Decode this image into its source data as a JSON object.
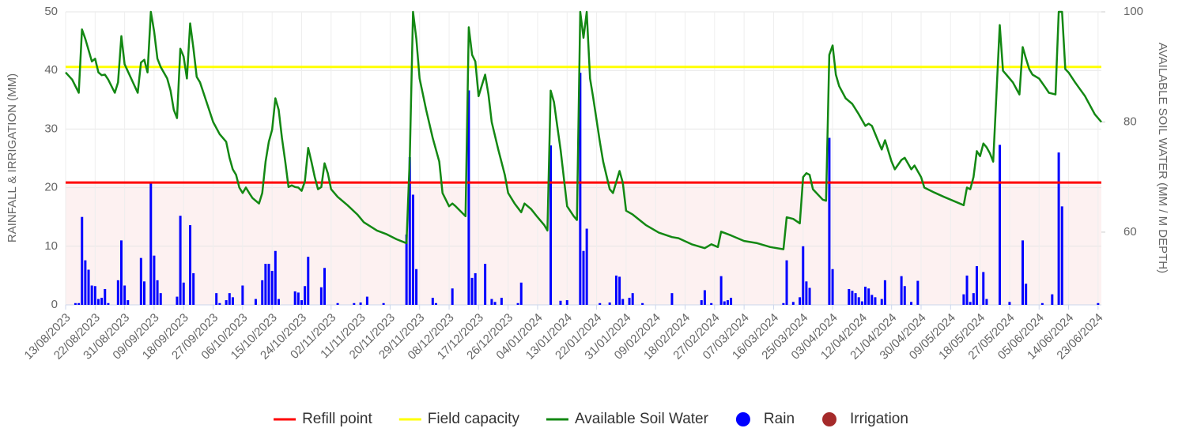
{
  "chart_data": {
    "type": "combo",
    "ylabel": "RAINFALL & IRRIGATION (MM)",
    "y2label": "AVAILABLE SOIL WATER (MM / M DEPTH)",
    "xlim": [
      "13/08/2023",
      "24/06/2024"
    ],
    "xticks": [
      "13/08/2023",
      "22/08/2023",
      "31/08/2023",
      "09/09/2023",
      "18/09/2023",
      "27/09/2023",
      "06/10/2023",
      "15/10/2023",
      "24/10/2023",
      "02/11/2023",
      "11/11/2023",
      "20/11/2023",
      "29/11/2023",
      "08/12/2023",
      "17/12/2023",
      "26/12/2023",
      "04/01/2024",
      "13/01/2024",
      "22/01/2024",
      "31/01/2024",
      "09/02/2024",
      "18/02/2024",
      "27/02/2024",
      "07/03/2024",
      "16/03/2024",
      "25/03/2024",
      "03/04/2024",
      "12/04/2024",
      "21/04/2024",
      "30/04/2024",
      "09/05/2024",
      "18/05/2024",
      "27/05/2024",
      "05/06/2024",
      "14/06/2024",
      "23/06/2024"
    ],
    "ylim": [
      0,
      50
    ],
    "yticks": [
      0,
      10,
      20,
      30,
      40,
      50
    ],
    "y2lim": [
      46.8,
      100
    ],
    "y2ticks": [
      60,
      80,
      100
    ],
    "grid": true,
    "legend": "bottom",
    "series": [
      {
        "name": "Refill point",
        "type": "hline",
        "axis": "y2",
        "color": "#ff0000",
        "value": 69
      },
      {
        "name": "Field capacity",
        "type": "hline",
        "axis": "y2",
        "color": "#ffff00",
        "value": 90
      },
      {
        "name": "Available Soil Water",
        "type": "line",
        "axis": "y2",
        "color": "#138813",
        "x": [
          "13/08/2023",
          "15/08/2023",
          "16/08/2023",
          "17/08/2023",
          "18/08/2023",
          "19/08/2023",
          "21/08/2023",
          "22/08/2023",
          "23/08/2023",
          "24/08/2023",
          "25/08/2023",
          "26/08/2023",
          "28/08/2023",
          "29/08/2023",
          "30/08/2023",
          "31/08/2023",
          "02/09/2023",
          "04/09/2023",
          "05/09/2023",
          "06/09/2023",
          "07/09/2023",
          "08/09/2023",
          "09/09/2023",
          "10/09/2023",
          "11/09/2023",
          "13/09/2023",
          "14/09/2023",
          "15/09/2023",
          "16/09/2023",
          "17/09/2023",
          "18/09/2023",
          "19/09/2023",
          "20/09/2023",
          "21/09/2023",
          "22/09/2023",
          "23/09/2023",
          "25/09/2023",
          "27/09/2023",
          "29/09/2023",
          "01/10/2023",
          "02/10/2023",
          "03/10/2023",
          "04/10/2023",
          "05/10/2023",
          "06/10/2023",
          "07/10/2023",
          "08/10/2023",
          "09/10/2023",
          "11/10/2023",
          "12/10/2023",
          "13/10/2023",
          "14/10/2023",
          "15/10/2023",
          "16/10/2023",
          "17/10/2023",
          "18/10/2023",
          "19/10/2023",
          "20/10/2023",
          "21/10/2023",
          "22/10/2023",
          "23/10/2023",
          "24/10/2023",
          "25/10/2023",
          "26/10/2023",
          "27/10/2023",
          "28/10/2023",
          "29/10/2023",
          "30/10/2023",
          "31/10/2023",
          "01/11/2023",
          "02/11/2023",
          "04/11/2023",
          "07/11/2023",
          "10/11/2023",
          "12/11/2023",
          "16/11/2023",
          "19/11/2023",
          "22/11/2023",
          "25/11/2023",
          "26/11/2023",
          "27/11/2023",
          "28/11/2023",
          "29/11/2023",
          "01/12/2023",
          "03/12/2023",
          "05/12/2023",
          "06/12/2023",
          "08/12/2023",
          "09/12/2023",
          "10/12/2023",
          "13/12/2023",
          "14/12/2023",
          "15/12/2023",
          "16/12/2023",
          "17/12/2023",
          "19/12/2023",
          "20/12/2023",
          "21/12/2023",
          "23/12/2023",
          "25/12/2023",
          "26/12/2023",
          "28/12/2023",
          "30/12/2023",
          "31/12/2023",
          "02/01/2024",
          "04/01/2024",
          "06/01/2024",
          "07/01/2024",
          "08/01/2024",
          "09/01/2024",
          "10/01/2024",
          "11/01/2024",
          "13/01/2024",
          "15/01/2024",
          "16/01/2024",
          "17/01/2024",
          "18/01/2024",
          "19/01/2024",
          "20/01/2024",
          "21/01/2024",
          "23/01/2024",
          "24/01/2024",
          "26/01/2024",
          "27/01/2024",
          "29/01/2024",
          "30/01/2024",
          "31/01/2024",
          "02/02/2024",
          "06/02/2024",
          "10/02/2024",
          "14/02/2024",
          "16/02/2024",
          "20/02/2024",
          "24/02/2024",
          "26/02/2024",
          "28/02/2024",
          "29/02/2024",
          "03/03/2024",
          "07/03/2024",
          "11/03/2024",
          "15/03/2024",
          "19/03/2024",
          "20/03/2024",
          "22/03/2024",
          "24/03/2024",
          "25/03/2024",
          "26/03/2024",
          "27/03/2024",
          "28/03/2024",
          "31/03/2024",
          "01/04/2024",
          "02/04/2024",
          "03/04/2024",
          "04/04/2024",
          "05/04/2024",
          "07/04/2024",
          "09/04/2024",
          "11/04/2024",
          "13/04/2024",
          "14/04/2024",
          "15/04/2024",
          "17/04/2024",
          "18/04/2024",
          "19/04/2024",
          "21/04/2024",
          "22/04/2024",
          "24/04/2024",
          "25/04/2024",
          "27/04/2024",
          "28/04/2024",
          "30/04/2024",
          "01/05/2024",
          "04/05/2024",
          "07/05/2024",
          "11/05/2024",
          "13/05/2024",
          "14/05/2024",
          "15/05/2024",
          "16/05/2024",
          "17/05/2024",
          "18/05/2024",
          "19/05/2024",
          "20/05/2024",
          "21/05/2024",
          "22/05/2024",
          "24/05/2024",
          "25/05/2024",
          "26/05/2024",
          "28/05/2024",
          "30/05/2024",
          "31/05/2024",
          "01/06/2024",
          "02/06/2024",
          "03/06/2024",
          "05/06/2024",
          "07/06/2024",
          "08/06/2024",
          "10/06/2024",
          "11/06/2024",
          "12/06/2024",
          "13/06/2024",
          "14/06/2024",
          "16/06/2024",
          "19/06/2024",
          "22/06/2024",
          "24/06/2024"
        ],
        "values": [
          89.0,
          87.7,
          86.5,
          85.3,
          96.8,
          95.1,
          91.0,
          91.5,
          89.0,
          88.5,
          88.6,
          87.7,
          85.3,
          87.2,
          95.6,
          90.5,
          87.9,
          85.3,
          90.8,
          91.3,
          89.0,
          100,
          96.5,
          91.5,
          90.0,
          87.9,
          85.7,
          82.2,
          80.7,
          93.3,
          91.9,
          87.9,
          97.9,
          93.3,
          88.2,
          87.2,
          83.6,
          80,
          77.8,
          76.4,
          73.5,
          71.4,
          70.4,
          68.1,
          67.1,
          68.1,
          67.1,
          66.2,
          65.2,
          67.1,
          72.8,
          76.4,
          78.6,
          84.3,
          82.2,
          77.1,
          72.8,
          68.2,
          68.5,
          68.2,
          68.1,
          67.5,
          69.2,
          75.3,
          72.8,
          70.0,
          67.8,
          68.2,
          72.5,
          70.7,
          67.8,
          66.4,
          64.9,
          63.2,
          61.8,
          60.3,
          59.6,
          58.7,
          58.0,
          73.5,
          100,
          95.1,
          87.9,
          82.2,
          77.1,
          72.8,
          67.1,
          64.7,
          65.2,
          64.7,
          62.9,
          97.2,
          92.2,
          91.0,
          84.7,
          88.6,
          85.0,
          80,
          75.0,
          70.4,
          67.1,
          65.2,
          63.6,
          65.2,
          64.2,
          62.7,
          61.3,
          60.3,
          85.7,
          83.6,
          79.3,
          75.0,
          64.7,
          62.9,
          62.2,
          100,
          95.3,
          100,
          87.9,
          84.3,
          76.4,
          72.8,
          67.8,
          67.1,
          71.1,
          69.0,
          63.9,
          63.2,
          61.3,
          59.9,
          59.1,
          58.9,
          57.8,
          57.1,
          57.8,
          57.3,
          60.1,
          59.4,
          58.4,
          58.0,
          57.3,
          56.9,
          62.7,
          62.4,
          61.6,
          70.0,
          70.7,
          70.4,
          67.8,
          65.9,
          65.7,
          92.2,
          93.9,
          88.6,
          86.5,
          84.3,
          83.3,
          81.4,
          79.3,
          79.7,
          79.3,
          76.4,
          75.0,
          76.7,
          72.8,
          71.4,
          73.1,
          73.5,
          71.4,
          72.1,
          70.0,
          68.1,
          67.2,
          66.4,
          65.4,
          64.9,
          68.1,
          67.8,
          70.0,
          74.7,
          73.8,
          76.1,
          75.4,
          74.3,
          72.8,
          97.6,
          89.3,
          88.6,
          87.2,
          85.0,
          93.6,
          91.5,
          89.6,
          88.6,
          87.9,
          86.2,
          85.3,
          85.0,
          100,
          100,
          89.6,
          89.0,
          87.2,
          84.7,
          81.4,
          80.0
        ]
      },
      {
        "name": "Rain",
        "type": "bar",
        "axis": "y",
        "color": "#0000ff",
        "x": [
          "16/08/2023",
          "17/08/2023",
          "18/08/2023",
          "19/08/2023",
          "20/08/2023",
          "21/08/2023",
          "22/08/2023",
          "23/08/2023",
          "24/08/2023",
          "25/08/2023",
          "26/08/2023",
          "29/08/2023",
          "30/08/2023",
          "31/08/2023",
          "01/09/2023",
          "05/09/2023",
          "06/09/2023",
          "08/09/2023",
          "09/09/2023",
          "10/09/2023",
          "11/09/2023",
          "16/09/2023",
          "17/09/2023",
          "18/09/2023",
          "20/09/2023",
          "21/09/2023",
          "28/09/2023",
          "29/09/2023",
          "01/10/2023",
          "02/10/2023",
          "03/10/2023",
          "06/10/2023",
          "10/10/2023",
          "12/10/2023",
          "13/10/2023",
          "14/10/2023",
          "15/10/2023",
          "16/10/2023",
          "17/10/2023",
          "22/10/2023",
          "23/10/2023",
          "24/10/2023",
          "25/10/2023",
          "26/10/2023",
          "30/10/2023",
          "31/10/2023",
          "04/11/2023",
          "09/11/2023",
          "11/11/2023",
          "13/11/2023",
          "18/11/2023",
          "25/11/2023",
          "26/11/2023",
          "27/11/2023",
          "28/11/2023",
          "03/12/2023",
          "04/12/2023",
          "09/12/2023",
          "14/12/2023",
          "15/12/2023",
          "16/12/2023",
          "19/12/2023",
          "21/12/2023",
          "22/12/2023",
          "24/12/2023",
          "29/12/2023",
          "30/12/2023",
          "08/01/2024",
          "11/01/2024",
          "13/01/2024",
          "17/01/2024",
          "18/01/2024",
          "19/01/2024",
          "23/01/2024",
          "26/01/2024",
          "28/01/2024",
          "29/01/2024",
          "30/01/2024",
          "01/02/2024",
          "02/02/2024",
          "05/02/2024",
          "14/02/2024",
          "23/02/2024",
          "24/02/2024",
          "26/02/2024",
          "29/02/2024",
          "01/03/2024",
          "02/03/2024",
          "03/03/2024",
          "19/03/2024",
          "20/03/2024",
          "22/03/2024",
          "24/03/2024",
          "25/03/2024",
          "26/03/2024",
          "27/03/2024",
          "02/04/2024",
          "03/04/2024",
          "08/04/2024",
          "09/04/2024",
          "10/04/2024",
          "11/04/2024",
          "12/04/2024",
          "13/04/2024",
          "14/04/2024",
          "15/04/2024",
          "16/04/2024",
          "18/04/2024",
          "19/04/2024",
          "24/04/2024",
          "25/04/2024",
          "27/04/2024",
          "29/04/2024",
          "13/05/2024",
          "14/05/2024",
          "15/05/2024",
          "16/05/2024",
          "17/05/2024",
          "19/05/2024",
          "20/05/2024",
          "24/05/2024",
          "27/05/2024",
          "31/05/2024",
          "01/06/2024",
          "06/06/2024",
          "09/06/2024",
          "11/06/2024",
          "12/06/2024",
          "23/06/2024"
        ],
        "values": [
          0.3,
          0.3,
          15,
          7.6,
          6,
          3.3,
          3.2,
          1,
          1.2,
          2.7,
          0.3,
          4.2,
          11,
          3.3,
          0.8,
          8,
          4,
          21,
          8.4,
          4.2,
          2,
          1.4,
          15.2,
          3.8,
          13.6,
          5.4,
          2,
          0.3,
          0.8,
          2,
          1.3,
          3.3,
          1,
          4.2,
          7,
          7,
          5.8,
          9.2,
          1,
          2.3,
          2.1,
          0.8,
          3.2,
          8.2,
          3,
          6.3,
          0.3,
          0.3,
          0.4,
          1.4,
          0.3,
          12,
          25.2,
          18.8,
          6.1,
          1.2,
          0.3,
          2.8,
          36.6,
          4.6,
          5.4,
          7,
          1,
          0.5,
          1.2,
          0.3,
          3.8,
          27.2,
          0.7,
          0.8,
          39.6,
          9.2,
          13,
          0.3,
          0.4,
          5,
          4.8,
          1,
          1.2,
          2,
          0.3,
          2,
          0.8,
          2.5,
          0.3,
          4.9,
          0.6,
          0.8,
          1.2,
          0.3,
          7.6,
          0.5,
          1.3,
          10,
          4,
          2.9,
          28.5,
          6.1,
          2.7,
          2.4,
          2,
          1.3,
          0.6,
          3.1,
          2.8,
          1.7,
          1.3,
          1,
          4.2,
          4.9,
          3.2,
          0.5,
          4.1,
          1.8,
          5,
          0.5,
          2,
          6.6,
          5.6,
          1,
          27.3,
          0.5,
          11,
          3.6,
          0.3,
          1.8,
          26,
          16.8,
          0.3
        ]
      },
      {
        "name": "Irrigation",
        "type": "bar",
        "axis": "y",
        "color": "#a52a2a",
        "x": [],
        "values": []
      }
    ]
  }
}
